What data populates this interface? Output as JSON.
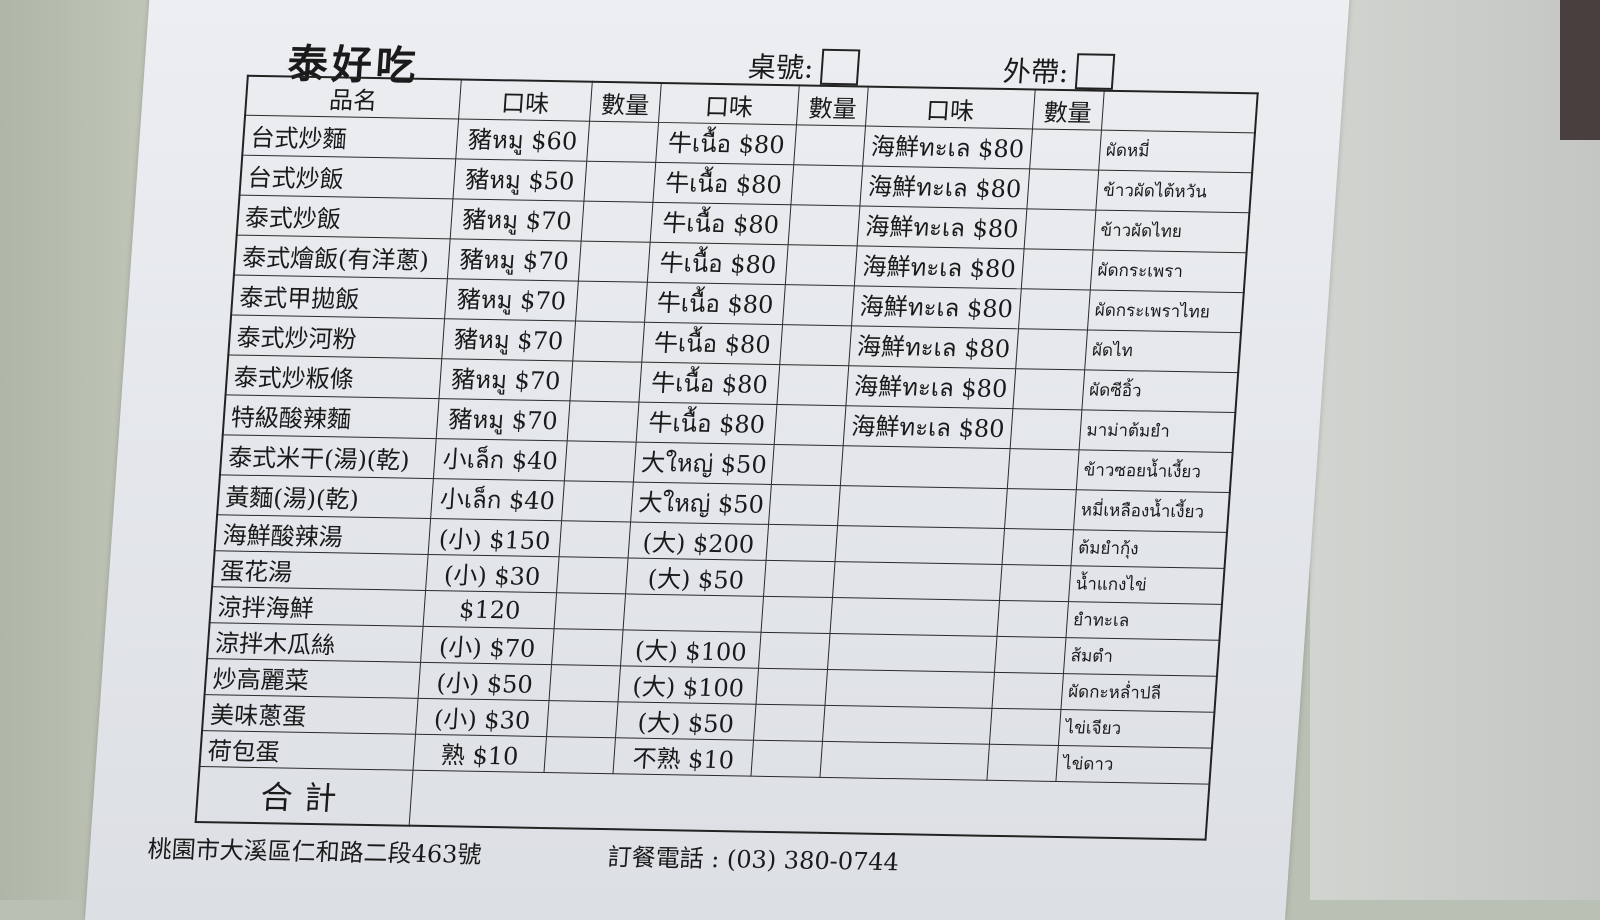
{
  "header": {
    "title": "泰好吃",
    "table_label": "桌號:",
    "takeout_label": "外帶:"
  },
  "columns": [
    "品名",
    "口味",
    "數量",
    "口味",
    "數量",
    "口味",
    "數量",
    ""
  ],
  "rows": [
    {
      "name": "台式炒麵",
      "f1": "豬หมู $60",
      "f2": "牛เนื้อ $80",
      "f3": "海鮮ทะเล $80",
      "thai": "ผัดหมี่"
    },
    {
      "name": "台式炒飯",
      "f1": "豬หมู $50",
      "f2": "牛เนื้อ $80",
      "f3": "海鮮ทะเล $80",
      "thai": "ข้าวผัดไต้หวัน"
    },
    {
      "name": "泰式炒飯",
      "f1": "豬หมู $70",
      "f2": "牛เนื้อ $80",
      "f3": "海鮮ทะเล $80",
      "thai": "ข้าวผัดไทย"
    },
    {
      "name": "泰式燴飯(有洋蔥)",
      "f1": "豬หมู $70",
      "f2": "牛เนื้อ $80",
      "f3": "海鮮ทะเล $80",
      "thai": "ผัดกระเพรา"
    },
    {
      "name": "泰式甲拋飯",
      "f1": "豬หมู $70",
      "f2": "牛เนื้อ $80",
      "f3": "海鮮ทะเล $80",
      "thai": "ผัดกระเพราไทย"
    },
    {
      "name": "泰式炒河粉",
      "f1": "豬หมู $70",
      "f2": "牛เนื้อ $80",
      "f3": "海鮮ทะเล $80",
      "thai": "ผัดไท"
    },
    {
      "name": "泰式炒粄條",
      "f1": "豬หมู $70",
      "f2": "牛เนื้อ $80",
      "f3": "海鮮ทะเล $80",
      "thai": "ผัดซีอิ้ว"
    },
    {
      "name": "特級酸辣麵",
      "f1": "豬หมู $70",
      "f2": "牛เนื้อ $80",
      "f3": "海鮮ทะเล $80",
      "thai": "มาม่าต้มยำ"
    },
    {
      "name": "泰式米干(湯)(乾)",
      "f1": "小เล็ก $40",
      "f2": "大ใหญ่ $50",
      "f3": "",
      "thai": "ข้าวซอยน้ำเงี้ยว"
    },
    {
      "name": "黃麵(湯)(乾)",
      "f1": "小เล็ก $40",
      "f2": "大ใหญ่ $50",
      "f3": "",
      "thai": "หมี่เหลืองน้ำเงี้ยว"
    },
    {
      "name": "海鮮酸辣湯",
      "f1": "(小) $150",
      "f2": "(大) $200",
      "f3": "",
      "thai": "ต้มยำกุ้ง"
    },
    {
      "name": "蛋花湯",
      "f1": "(小) $30",
      "f2": "(大) $50",
      "f3": "",
      "thai": "น้ำแกงไข่"
    },
    {
      "name": "涼拌海鮮",
      "f1": "$120",
      "f2": "",
      "f3": "",
      "thai": "ยำทะเล"
    },
    {
      "name": "涼拌木瓜絲",
      "f1": "(小) $70",
      "f2": "(大) $100",
      "f3": "",
      "thai": "ส้มตำ"
    },
    {
      "name": "炒高麗菜",
      "f1": "(小) $50",
      "f2": "(大) $100",
      "f3": "",
      "thai": "ผัดกะหล่ำปลี"
    },
    {
      "name": "美味蔥蛋",
      "f1": "(小) $30",
      "f2": "(大) $50",
      "f3": "",
      "thai": "ไข่เจียว"
    },
    {
      "name": "荷包蛋",
      "f1": "熟 $10",
      "f2": "不熟 $10",
      "f3": "",
      "thai": "ไข่ดาว"
    }
  ],
  "total_label": "合計",
  "footer": {
    "address": "桃園市大溪區仁和路二段463號",
    "phone": "訂餐電話 : (03) 380-0744"
  }
}
